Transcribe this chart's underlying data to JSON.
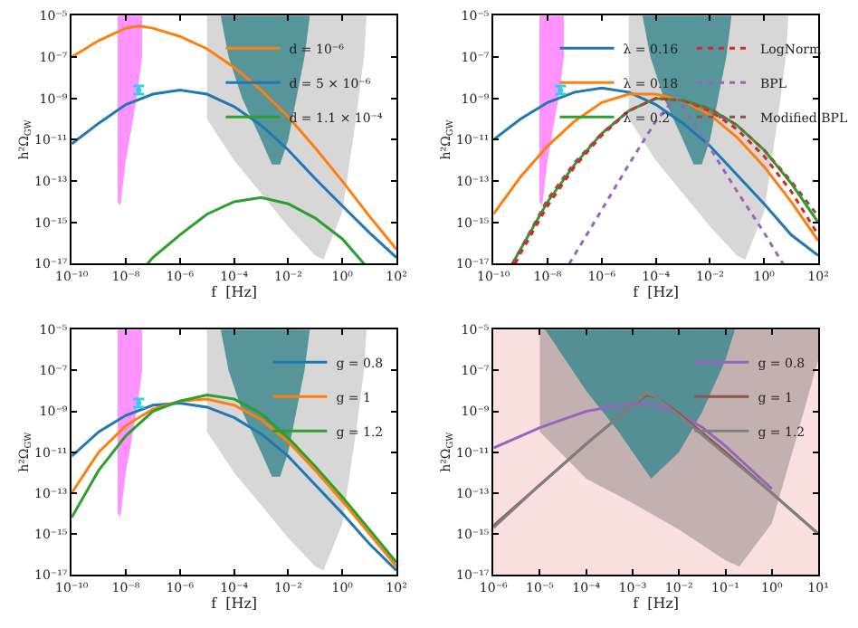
{
  "chart_data": [
    {
      "type": "line",
      "xlabel": "f  [Hz]",
      "ylabel": "h²Ω$_{GW}$",
      "log": "xy",
      "legend": "top right",
      "xlim": [
        1e-10,
        100
      ],
      "xticks": [
        {
          "value": 1e-10,
          "label": "10⁻¹⁰"
        },
        {
          "value": 1e-08,
          "label": "10⁻⁸"
        },
        {
          "value": 1e-06,
          "label": "10⁻⁶"
        },
        {
          "value": 0.0001,
          "label": "10⁻⁴"
        },
        {
          "value": 0.01,
          "label": "10⁻²"
        },
        {
          "value": 1,
          "label": "10⁰"
        },
        {
          "value": 100,
          "label": "10²"
        }
      ],
      "ylim": [
        1e-17,
        1e-05
      ],
      "yticks": [
        {
          "value": 1e-17,
          "label": "10⁻¹⁷"
        },
        {
          "value": 1e-15,
          "label": "10⁻¹⁵"
        },
        {
          "value": 1e-13,
          "label": "10⁻¹³"
        },
        {
          "value": 1e-11,
          "label": "10⁻¹¹"
        },
        {
          "value": 1e-09,
          "label": "10⁻⁹"
        },
        {
          "value": 1e-07,
          "label": "10⁻⁷"
        },
        {
          "value": 1e-05,
          "label": "10⁻⁵"
        }
      ],
      "series": [
        {
          "type": "area",
          "color": "#ff80ff",
          "x": [
            5e-09,
            5e-09,
            6.3e-09,
            1e-08,
            1.6e-08,
            2.5e-08,
            3.2e-08,
            4e-08,
            4e-08
          ],
          "values": [
            1e-05,
            1e-14,
            6.3e-15,
            1e-12,
            3.2e-11,
            1e-09,
            1e-08,
            1e-07,
            1e-05
          ]
        },
        {
          "type": "area",
          "color": "#d0d0d0",
          "x": [
            1e-05,
            1e-05,
            0.0001,
            0.001,
            0.01,
            0.1,
            0.2,
            1,
            3.2,
            6.3,
            7.9
          ],
          "values": [
            1e-05,
            1e-10,
            1e-12,
            2.5e-14,
            6.3e-16,
            2.5e-17,
            1.6e-17,
            3.2e-15,
            1e-10,
            1e-07,
            1e-05
          ]
        },
        {
          "type": "area",
          "color": "#3f8a8f",
          "x": [
            3.2e-05,
            6.3e-05,
            0.0002,
            0.001,
            0.0025,
            0.005,
            0.01,
            0.02,
            0.04,
            0.063
          ],
          "values": [
            1e-05,
            1e-07,
            1e-09,
            1e-11,
            6.3e-13,
            6.3e-13,
            1e-11,
            1e-09,
            1e-07,
            1e-05
          ]
        },
        {
          "name": "d = 10⁻⁶",
          "color": "#ff7f0e",
          "x": [
            1e-10,
            1e-09,
            1e-08,
            3.2e-08,
            1e-07,
            1e-06,
            1e-05,
            0.0001,
            0.001,
            0.01,
            0.1,
            1,
            10,
            100
          ],
          "values": [
            1e-07,
            6.3e-07,
            2.5e-06,
            3.2e-06,
            2.5e-06,
            1e-06,
            2.5e-07,
            3.2e-08,
            2.5e-09,
            1.3e-10,
            4e-12,
            1e-13,
            2e-15,
            5e-17
          ]
        },
        {
          "name": "d = 5 × 10⁻⁶",
          "color": "#1f77b4",
          "x": [
            1e-10,
            1e-09,
            1e-08,
            1e-07,
            1e-06,
            1e-05,
            0.0001,
            0.001,
            0.01,
            0.1,
            1,
            10,
            100
          ],
          "values": [
            6.3e-12,
            6.3e-11,
            5e-10,
            1.6e-09,
            2.5e-09,
            1.6e-09,
            4e-10,
            5e-11,
            3.2e-12,
            1.3e-13,
            6.3e-15,
            3.2e-16,
            2e-17
          ]
        },
        {
          "name": "d = 1.1 × 10⁻⁴",
          "color": "#2ca02c",
          "x": [
            6.3e-08,
            1e-07,
            1e-06,
            1e-05,
            0.0001,
            0.001,
            0.01,
            0.1,
            1,
            6.3
          ],
          "values": [
            1e-17,
            2e-17,
            2.5e-16,
            2.5e-15,
            1e-14,
            1.6e-14,
            7.9e-15,
            1.6e-15,
            1.6e-16,
            1e-17
          ]
        },
        {
          "type": "scatter",
          "color": "#33ccee",
          "x": [
            3e-08
          ],
          "values": [
            2.5e-09
          ],
          "errors": [
            [
              1.6e-09,
              4e-09
            ]
          ]
        }
      ]
    },
    {
      "type": "line",
      "xlabel": "f  [Hz]",
      "ylabel": "h²Ω$_{GW}$",
      "log": "xy",
      "legend": "top",
      "xlim": [
        1e-10,
        100
      ],
      "xticks": [
        {
          "value": 1e-10,
          "label": "10⁻¹⁰"
        },
        {
          "value": 1e-08,
          "label": "10⁻⁸"
        },
        {
          "value": 1e-06,
          "label": "10⁻⁶"
        },
        {
          "value": 0.0001,
          "label": "10⁻⁴"
        },
        {
          "value": 0.01,
          "label": "10⁻²"
        },
        {
          "value": 1,
          "label": "10⁰"
        },
        {
          "value": 100,
          "label": "10²"
        }
      ],
      "ylim": [
        1e-17,
        1e-05
      ],
      "yticks": [
        {
          "value": 1e-17,
          "label": "10⁻¹⁷"
        },
        {
          "value": 1e-15,
          "label": "10⁻¹⁵"
        },
        {
          "value": 1e-13,
          "label": "10⁻¹³"
        },
        {
          "value": 1e-11,
          "label": "10⁻¹¹"
        },
        {
          "value": 1e-09,
          "label": "10⁻⁹"
        },
        {
          "value": 1e-07,
          "label": "10⁻⁷"
        },
        {
          "value": 1e-05,
          "label": "10⁻⁵"
        }
      ],
      "series": [
        {
          "type": "area",
          "color": "#ff80ff",
          "x": [
            5e-09,
            5e-09,
            6.3e-09,
            1e-08,
            1.6e-08,
            2.5e-08,
            3.2e-08,
            4e-08,
            4e-08
          ],
          "values": [
            1e-05,
            1e-14,
            6.3e-15,
            1e-12,
            3.2e-11,
            1e-09,
            1e-08,
            1e-07,
            1e-05
          ]
        },
        {
          "type": "area",
          "color": "#d0d0d0",
          "x": [
            1e-05,
            1e-05,
            0.0001,
            0.001,
            0.01,
            0.1,
            0.2,
            1,
            3.2,
            6.3,
            7.9
          ],
          "values": [
            1e-05,
            1e-10,
            1e-12,
            2.5e-14,
            6.3e-16,
            2.5e-17,
            1.6e-17,
            3.2e-15,
            1e-10,
            1e-07,
            1e-05
          ]
        },
        {
          "type": "area",
          "color": "#3f8a8f",
          "x": [
            3.2e-05,
            6.3e-05,
            0.0002,
            0.001,
            0.0025,
            0.005,
            0.01,
            0.02,
            0.04,
            0.063
          ],
          "values": [
            1e-05,
            1e-07,
            1e-09,
            1e-11,
            6.3e-13,
            6.3e-13,
            1e-11,
            1e-09,
            1e-07,
            1e-05
          ]
        },
        {
          "name": "λ = 0.16",
          "color": "#1f77b4",
          "x": [
            1e-10,
            1e-09,
            1e-08,
            1e-07,
            1e-06,
            1e-05,
            0.0001,
            0.001,
            0.01,
            0.1,
            1,
            10,
            100
          ],
          "values": [
            1e-11,
            1e-10,
            6.3e-10,
            2e-09,
            3.2e-09,
            2e-09,
            5e-10,
            6.3e-11,
            5e-12,
            2e-13,
            7.9e-15,
            2.5e-16,
            2.5e-17
          ]
        },
        {
          "name": "λ = 0.18",
          "color": "#ff7f0e",
          "x": [
            1e-10,
            1e-09,
            1e-08,
            1e-07,
            1e-06,
            1e-05,
            0.0001,
            0.001,
            0.01,
            0.1,
            1,
            10,
            100
          ],
          "values": [
            2.5e-15,
            1.6e-13,
            5e-12,
            7.9e-11,
            6.3e-10,
            1.6e-09,
            1.6e-09,
            7.9e-10,
            1.6e-10,
            1.3e-11,
            5e-13,
            1e-14,
            1.3e-16
          ]
        },
        {
          "name": "λ = 0.2",
          "color": "#2ca02c",
          "x": [
            5e-10,
            1e-09,
            1e-08,
            1e-07,
            1e-06,
            1e-05,
            0.0001,
            0.001,
            0.01,
            0.1,
            1,
            10,
            100
          ],
          "values": [
            1e-17,
            5e-17,
            1e-14,
            6.3e-13,
            2e-11,
            2.5e-10,
            1e-09,
            7.9e-10,
            3.2e-10,
            5e-11,
            3.2e-12,
            7.9e-14,
            1e-15
          ]
        },
        {
          "name": "LogNorm",
          "color": "#d62728",
          "line_style": "dotted",
          "x": [
            6.3e-10,
            1e-09,
            1e-08,
            1e-07,
            1e-06,
            1e-05,
            0.0001,
            0.001,
            0.01,
            0.1,
            1,
            10,
            100
          ],
          "values": [
            1e-17,
            3.2e-17,
            6.3e-15,
            5e-13,
            1.6e-11,
            2.5e-10,
            1e-09,
            7.9e-10,
            2.5e-10,
            3.2e-11,
            1.6e-12,
            3.2e-14,
            2.5e-16
          ]
        },
        {
          "name": "BPL",
          "color": "#9467bd",
          "line_style": "dotted",
          "x": [
            6.3e-08,
            1e-06,
            1e-05,
            0.0001,
            0.0005,
            0.001,
            0.01,
            0.1,
            1,
            5
          ],
          "values": [
            1e-17,
            4e-15,
            6.3e-13,
            7.9e-11,
            1e-09,
            4e-10,
            4e-12,
            3.2e-14,
            3.2e-16,
            1e-17
          ]
        },
        {
          "name": "Modified BPL",
          "color": "#8c564b",
          "line_style": "dotted",
          "x": [
            5e-10,
            1e-09,
            1e-08,
            1e-07,
            1e-06,
            1e-05,
            0.0001,
            0.001,
            0.01,
            0.1,
            1,
            10,
            100
          ],
          "values": [
            1e-17,
            5e-17,
            1.3e-14,
            7.9e-13,
            2e-11,
            2.5e-10,
            1e-09,
            7.9e-10,
            3.2e-10,
            5e-11,
            3.2e-12,
            1e-13,
            2e-15
          ]
        },
        {
          "type": "scatter",
          "color": "#33ccee",
          "x": [
            3e-08
          ],
          "values": [
            2.5e-09
          ],
          "errors": [
            [
              1.6e-09,
              4e-09
            ]
          ]
        }
      ]
    },
    {
      "type": "line",
      "xlabel": "f  [Hz]",
      "ylabel": "h²Ω$_{GW}$",
      "log": "xy",
      "legend": "top right",
      "xlim": [
        1e-10,
        100
      ],
      "xticks": [
        {
          "value": 1e-10,
          "label": "10⁻¹⁰"
        },
        {
          "value": 1e-08,
          "label": "10⁻⁸"
        },
        {
          "value": 1e-06,
          "label": "10⁻⁶"
        },
        {
          "value": 0.0001,
          "label": "10⁻⁴"
        },
        {
          "value": 0.01,
          "label": "10⁻²"
        },
        {
          "value": 1,
          "label": "10⁰"
        },
        {
          "value": 100,
          "label": "10²"
        }
      ],
      "ylim": [
        1e-17,
        1e-05
      ],
      "yticks": [
        {
          "value": 1e-17,
          "label": "10⁻¹⁷"
        },
        {
          "value": 1e-15,
          "label": "10⁻¹⁵"
        },
        {
          "value": 1e-13,
          "label": "10⁻¹³"
        },
        {
          "value": 1e-11,
          "label": "10⁻¹¹"
        },
        {
          "value": 1e-09,
          "label": "10⁻⁹"
        },
        {
          "value": 1e-07,
          "label": "10⁻⁷"
        },
        {
          "value": 1e-05,
          "label": "10⁻⁵"
        }
      ],
      "series": [
        {
          "type": "area",
          "color": "#ff80ff",
          "x": [
            5e-09,
            5e-09,
            6.3e-09,
            1e-08,
            1.6e-08,
            2.5e-08,
            3.2e-08,
            4e-08,
            4e-08
          ],
          "values": [
            1e-05,
            1e-14,
            6.3e-15,
            1e-12,
            3.2e-11,
            1e-09,
            1e-08,
            1e-07,
            1e-05
          ]
        },
        {
          "type": "area",
          "color": "#d0d0d0",
          "x": [
            1e-05,
            1e-05,
            0.0001,
            0.001,
            0.01,
            0.1,
            0.2,
            1,
            3.2,
            6.3,
            7.9
          ],
          "values": [
            1e-05,
            1e-10,
            1e-12,
            2.5e-14,
            6.3e-16,
            2.5e-17,
            1.6e-17,
            3.2e-15,
            1e-10,
            1e-07,
            1e-05
          ]
        },
        {
          "type": "area",
          "color": "#3f8a8f",
          "x": [
            3.2e-05,
            6.3e-05,
            0.0002,
            0.001,
            0.0025,
            0.005,
            0.01,
            0.02,
            0.04,
            0.063
          ],
          "values": [
            1e-05,
            1e-07,
            1e-09,
            1e-11,
            6.3e-13,
            6.3e-13,
            1e-11,
            1e-09,
            1e-07,
            1e-05
          ]
        },
        {
          "name": "g = 0.8",
          "color": "#1f77b4",
          "x": [
            1e-10,
            1e-09,
            1e-08,
            1e-07,
            1e-06,
            1e-05,
            0.0001,
            0.001,
            0.01,
            0.1,
            1,
            10,
            100
          ],
          "values": [
            6.3e-12,
            1e-10,
            6.3e-10,
            2e-09,
            2.5e-09,
            1.6e-09,
            5e-10,
            7.9e-11,
            6.3e-12,
            2.5e-13,
            1e-14,
            3.2e-16,
            1.6e-17
          ]
        },
        {
          "name": "g = 1",
          "color": "#ff7f0e",
          "x": [
            1e-10,
            1e-09,
            1e-08,
            1e-07,
            1e-06,
            1e-05,
            0.0001,
            0.001,
            0.01,
            0.1,
            1,
            10,
            100
          ],
          "values": [
            1e-13,
            1e-11,
            2e-10,
            1.3e-09,
            3.2e-09,
            4e-09,
            2e-09,
            4e-10,
            3.2e-11,
            1.3e-12,
            4e-14,
            1e-15,
            2.5e-17
          ]
        },
        {
          "name": "g = 1.2",
          "color": "#2ca02c",
          "x": [
            1e-10,
            1e-09,
            1e-08,
            1e-07,
            1e-06,
            1e-05,
            0.0001,
            0.001,
            0.01,
            0.1,
            1,
            10,
            100
          ],
          "values": [
            6.3e-15,
            1.3e-12,
            6.3e-11,
            1e-09,
            3.2e-09,
            6.3e-09,
            4e-09,
            7.9e-10,
            5e-11,
            2e-12,
            6.3e-14,
            1.6e-15,
            4e-17
          ]
        },
        {
          "type": "scatter",
          "color": "#33ccee",
          "x": [
            3e-08
          ],
          "values": [
            2.5e-09
          ],
          "errors": [
            [
              1.6e-09,
              4e-09
            ]
          ]
        }
      ]
    },
    {
      "type": "line",
      "xlabel": "f  [Hz]",
      "ylabel": "h²Ω$_{GW}$",
      "log": "xy",
      "legend": "top right",
      "xlim": [
        1e-06,
        10
      ],
      "bands": [
        {
          "axis": "x",
          "from": 1e-06,
          "to": 10,
          "color": "#fbe0e0"
        }
      ],
      "xticks": [
        {
          "value": 1e-06,
          "label": "10⁻⁶"
        },
        {
          "value": 1e-05,
          "label": "10⁻⁵"
        },
        {
          "value": 0.0001,
          "label": "10⁻⁴"
        },
        {
          "value": 0.001,
          "label": "10⁻³"
        },
        {
          "value": 0.01,
          "label": "10⁻²"
        },
        {
          "value": 0.1,
          "label": "10⁻¹"
        },
        {
          "value": 1,
          "label": "10⁰"
        },
        {
          "value": 10,
          "label": "10¹"
        }
      ],
      "ylim": [
        1e-17,
        1e-05
      ],
      "yticks": [
        {
          "value": 1e-17,
          "label": "10⁻¹⁷"
        },
        {
          "value": 1e-15,
          "label": "10⁻¹⁵"
        },
        {
          "value": 1e-13,
          "label": "10⁻¹³"
        },
        {
          "value": 1e-11,
          "label": "10⁻¹¹"
        },
        {
          "value": 1e-09,
          "label": "10⁻⁹"
        },
        {
          "value": 1e-07,
          "label": "10⁻⁷"
        },
        {
          "value": 1e-05,
          "label": "10⁻⁵"
        }
      ],
      "series": [
        {
          "type": "area",
          "color": "#b8a8a8",
          "x": [
            1e-05,
            1e-05,
            0.0001,
            0.001,
            0.01,
            0.1,
            0.2,
            1,
            3.2,
            10,
            10
          ],
          "values": [
            1e-05,
            1e-10,
            5e-13,
            3.2e-14,
            1.6e-15,
            5e-17,
            2.5e-17,
            3.2e-15,
            3.2e-11,
            3.2e-07,
            1e-05
          ]
        },
        {
          "type": "area",
          "color": "#3f8a8f",
          "x": [
            1.3e-05,
            0.0001,
            0.0005,
            0.0025,
            0.01,
            0.032,
            0.1,
            0.16
          ],
          "values": [
            1e-05,
            1e-08,
            1e-10,
            5e-13,
            1e-11,
            1e-09,
            3.2e-07,
            1e-05
          ]
        },
        {
          "name": "g = 0.8",
          "color": "#9467bd",
          "x": [
            1e-06,
            1e-05,
            0.0001,
            0.001,
            0.0032,
            0.01,
            0.032,
            0.1,
            1
          ],
          "values": [
            1.6e-11,
            1.6e-10,
            1e-09,
            2.5e-09,
            2e-09,
            7.9e-10,
            1.6e-10,
            2e-11,
            1.6e-13
          ]
        },
        {
          "name": "g = 1",
          "color": "#8c564b",
          "x": [
            1e-06,
            1e-05,
            0.0001,
            0.001,
            0.002,
            0.0032,
            0.01,
            0.1,
            1,
            10
          ],
          "values": [
            2.5e-15,
            2.5e-13,
            2.5e-11,
            2e-09,
            6.3e-09,
            5e-09,
            7.9e-10,
            1e-11,
            1e-13,
            1e-15
          ]
        },
        {
          "name": "g = 1.2",
          "color": "#7f7f7f",
          "x": [
            1e-06,
            1e-05,
            0.0001,
            0.001,
            0.002,
            0.0032,
            0.01,
            0.1,
            1,
            10
          ],
          "values": [
            2e-15,
            2.5e-13,
            2.5e-11,
            2e-09,
            7.9e-09,
            5e-09,
            6.3e-10,
            7.9e-12,
            1e-13,
            1e-15
          ]
        }
      ]
    }
  ]
}
